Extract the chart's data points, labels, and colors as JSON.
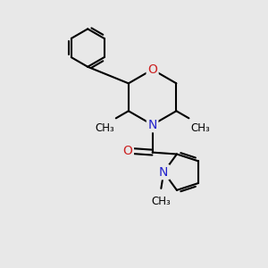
{
  "background_color": "#e8e8e8",
  "atom_color_N": "#2222cc",
  "atom_color_O": "#cc2222",
  "atom_color_C": "#000000",
  "bond_color": "#000000",
  "bond_width": 1.5,
  "font_size_atom": 10,
  "font_size_methyl": 8.5,
  "xlim": [
    0,
    10
  ],
  "ylim": [
    0,
    10
  ]
}
